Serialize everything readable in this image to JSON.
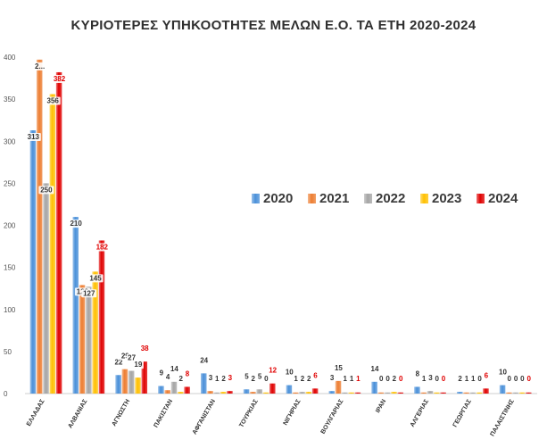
{
  "chart_data": {
    "type": "bar",
    "title": "ΚΥΡΙΟΤΕΡΕΣ ΥΠΗΚΟΟΤΗΤΕΣ ΜΕΛΩΝ Ε.Ο. ΤΑ ΕΤΗ 2020-2024",
    "categories": [
      "ΕΛΛΑΔΑΣ",
      "ΑΛΒΑΝΙΑΣ",
      "ΑΓΝΩΣΤΗ",
      "ΠΑΚΙΣΤΑΝ",
      "ΑΦΓΑΝΙΣΤΑΝ",
      "ΤΟΥΡΚΙΑΣ",
      "ΝΙΓΗΡΙΑΣ",
      "ΒΟΥΛΓΑΡΙΑΣ",
      "ΙΡΑΝ",
      "ΑΛΓΕΡΙΑΣ",
      "ΓΕΩΡΓΙΑΣ",
      "ΠΑΛΑΙΣΤΙΝΗΣ"
    ],
    "series": [
      {
        "name": "2020",
        "color": "#4a90d9",
        "values": [
          313,
          210,
          22,
          9,
          24,
          5,
          10,
          3,
          14,
          8,
          2,
          10
        ]
      },
      {
        "name": "2021",
        "color": "#ed7d31",
        "values": [
          397,
          129,
          29,
          4,
          3,
          2,
          1,
          15,
          0,
          1,
          1,
          0
        ]
      },
      {
        "name": "2022",
        "color": "#a5a5a5",
        "values": [
          250,
          127,
          27,
          14,
          1,
          5,
          2,
          1,
          0,
          3,
          1,
          0
        ]
      },
      {
        "name": "2023",
        "color": "#ffc000",
        "values": [
          356,
          145,
          19,
          2,
          2,
          0,
          2,
          1,
          2,
          0,
          0,
          0
        ]
      },
      {
        "name": "2024",
        "color": "#e00000",
        "values": [
          382,
          182,
          38,
          8,
          3,
          12,
          6,
          1,
          0,
          0,
          6,
          0
        ]
      }
    ],
    "data_label_overrides": {
      "0_1": "2..."
    },
    "ylim": [
      0,
      400
    ],
    "yticks": [
      0,
      50,
      100,
      150,
      200,
      250,
      300,
      350,
      400
    ],
    "legend_position": "right",
    "grid": false
  }
}
